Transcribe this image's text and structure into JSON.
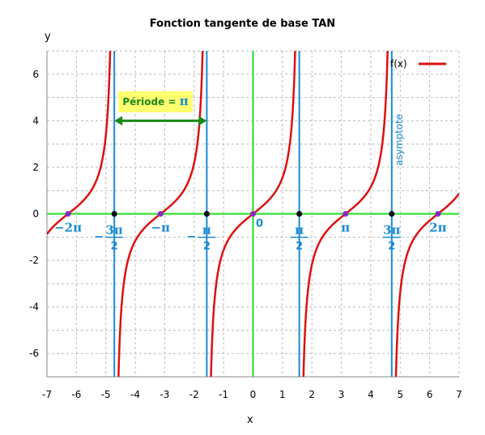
{
  "chart_data": {
    "type": "line",
    "title": "Fonction tangente de base TAN",
    "xlabel": "x",
    "ylabel": "y",
    "xlim": [
      -7,
      7
    ],
    "ylim": [
      -7,
      7
    ],
    "x_ticks": [
      "-7",
      "-6",
      "-5",
      "-4",
      "-3",
      "-2",
      "-1",
      "0",
      "1",
      "2",
      "3",
      "4",
      "5",
      "6",
      "7"
    ],
    "y_ticks": [
      "6",
      "4",
      "2",
      "0",
      "-2",
      "-4",
      "-6"
    ],
    "grid": true,
    "legend": "top-right",
    "series": [
      {
        "name": "f(x)",
        "function": "tan(x)",
        "color": "#dd1111"
      }
    ],
    "asymptotes": [
      -4.712,
      -1.571,
      1.571,
      4.712
    ],
    "asymptote_label": "asymptote",
    "zeros": [
      -6.283,
      -3.142,
      0,
      3.142,
      6.283
    ],
    "pi_labels": [
      {
        "x": -6.283,
        "text": "−2π"
      },
      {
        "x": -4.712,
        "sign": "−",
        "num": "3π",
        "den": "2"
      },
      {
        "x": -3.142,
        "text": "−π"
      },
      {
        "x": -1.571,
        "sign": "−",
        "num": "π",
        "den": "2"
      },
      {
        "x": 0,
        "text": "0"
      },
      {
        "x": 1.571,
        "sign": "",
        "num": "π",
        "den": "2"
      },
      {
        "x": 3.142,
        "text": "π"
      },
      {
        "x": 4.712,
        "sign": "",
        "num": "3π",
        "den": "2"
      },
      {
        "x": 6.283,
        "text": "2π"
      }
    ],
    "annotation": {
      "label": "Période =",
      "value": "π",
      "from": -4.712,
      "to": -1.571,
      "y": 4
    },
    "colors": {
      "curve": "#dd1111",
      "asymptote": "#1a8ad4",
      "axes": "#22dd22",
      "period": "#1a8a1a",
      "grid": "#bbbbbb"
    }
  }
}
